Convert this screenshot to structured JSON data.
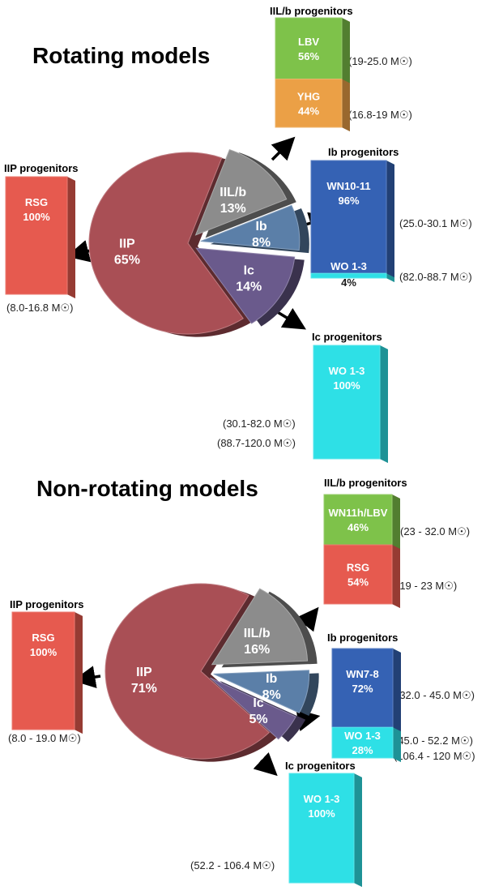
{
  "sun_symbol": "☉",
  "chart_data": [
    {
      "type": "pie",
      "title": "Rotating models",
      "categories": [
        "IIP",
        "IIL/b",
        "Ib",
        "Ic"
      ],
      "values": [
        65,
        13,
        8,
        14
      ],
      "labels": [
        "65%",
        "13%",
        "8%",
        "14%"
      ],
      "colors": [
        "#a94f55",
        "#8c8c8c",
        "#5b7fa8",
        "#6a5a8c"
      ],
      "progenitors": [
        {
          "heading": "IIP progenitors",
          "segments": [
            {
              "name": "RSG",
              "pct": 100,
              "pct_text": "100%",
              "color": "#e65a4f"
            }
          ],
          "ranges": [
            "(8.0-16.8 M"
          ]
        },
        {
          "heading": "IIL/b progenitors",
          "segments": [
            {
              "name": "LBV",
              "pct": 56,
              "pct_text": "56%",
              "color": "#7ec24a"
            },
            {
              "name": "YHG",
              "pct": 44,
              "pct_text": "44%",
              "color": "#eba046"
            }
          ],
          "ranges": [
            "(19-25.0 M",
            "(16.8-19 M"
          ]
        },
        {
          "heading": "Ib progenitors",
          "segments": [
            {
              "name": "WN10-11",
              "pct": 96,
              "pct_text": "96%",
              "color": "#3562b4"
            },
            {
              "name": "WO 1-3",
              "pct": 4,
              "pct_text": "4%",
              "color": "#2ee0e6"
            }
          ],
          "ranges": [
            "(25.0-30.1 M",
            "(82.0-88.7 M"
          ]
        },
        {
          "heading": "Ic progenitors",
          "segments": [
            {
              "name": "WO 1-3",
              "pct": 100,
              "pct_text": "100%",
              "color": "#2ee0e6"
            }
          ],
          "ranges": [
            "(30.1-82.0 M",
            "(88.7-120.0 M"
          ]
        }
      ]
    },
    {
      "type": "pie",
      "title": "Non-rotating models",
      "categories": [
        "IIP",
        "IIL/b",
        "Ib",
        "Ic"
      ],
      "values": [
        71,
        16,
        8,
        5
      ],
      "labels": [
        "71%",
        "16%",
        "8%",
        "5%"
      ],
      "colors": [
        "#a94f55",
        "#8c8c8c",
        "#5b7fa8",
        "#6a5a8c"
      ],
      "progenitors": [
        {
          "heading": "IIP progenitors",
          "segments": [
            {
              "name": "RSG",
              "pct": 100,
              "pct_text": "100%",
              "color": "#e65a4f"
            }
          ],
          "ranges": [
            "(8.0 - 19.0 M"
          ]
        },
        {
          "heading": "IIL/b progenitors",
          "segments": [
            {
              "name": "WN11h/LBV",
              "pct": 46,
              "pct_text": "46%",
              "color": "#7ec24a"
            },
            {
              "name": "RSG",
              "pct": 54,
              "pct_text": "54%",
              "color": "#e65a4f"
            }
          ],
          "ranges": [
            "(23 - 32.0 M",
            "(19 - 23 M"
          ]
        },
        {
          "heading": "Ib progenitors",
          "segments": [
            {
              "name": "WN7-8",
              "pct": 72,
              "pct_text": "72%",
              "color": "#3562b4"
            },
            {
              "name": "WO 1-3",
              "pct": 28,
              "pct_text": "28%",
              "color": "#2ee0e6"
            }
          ],
          "ranges": [
            "(32.0 - 45.0 M",
            "(45.0 - 52.2 M",
            "(106.4 - 120 M"
          ]
        },
        {
          "heading": "Ic progenitors",
          "segments": [
            {
              "name": "WO 1-3",
              "pct": 100,
              "pct_text": "100%",
              "color": "#2ee0e6"
            }
          ],
          "ranges": [
            "(52.2 - 106.4 M"
          ]
        }
      ]
    }
  ]
}
